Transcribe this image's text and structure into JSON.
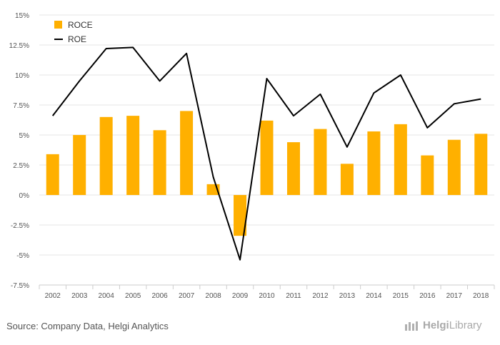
{
  "chart_data": {
    "type": "bar",
    "categories": [
      "2002",
      "2003",
      "2004",
      "2005",
      "2006",
      "2007",
      "2008",
      "2009",
      "2010",
      "2011",
      "2012",
      "2013",
      "2014",
      "2015",
      "2016",
      "2017",
      "2018"
    ],
    "series": [
      {
        "name": "ROCE",
        "type": "bar",
        "color": "#FFB000",
        "values": [
          3.4,
          5.0,
          6.5,
          6.6,
          5.4,
          7.0,
          0.9,
          -3.4,
          6.2,
          4.4,
          5.5,
          2.6,
          5.3,
          5.9,
          3.3,
          4.6,
          5.1
        ]
      },
      {
        "name": "ROE",
        "type": "line",
        "color": "#000000",
        "values": [
          6.6,
          9.5,
          12.2,
          12.3,
          9.5,
          11.8,
          1.5,
          -5.4,
          9.7,
          6.6,
          8.4,
          4.0,
          8.5,
          10.0,
          5.6,
          7.6,
          8.0
        ]
      }
    ],
    "yticks": [
      "15%",
      "12.5%",
      "10%",
      "7.5%",
      "5%",
      "2.5%",
      "0%",
      "-2.5%",
      "-5%",
      "-7.5%"
    ],
    "ylim": [
      -7.5,
      15
    ],
    "grid": true,
    "legend": "top-left"
  },
  "legend": {
    "roce_label": "ROCE",
    "roe_label": "ROE"
  },
  "footer": {
    "source": "Source: Company Data, Helgi Analytics",
    "brand_prefix": "Helgi",
    "brand_suffix": "Library"
  }
}
